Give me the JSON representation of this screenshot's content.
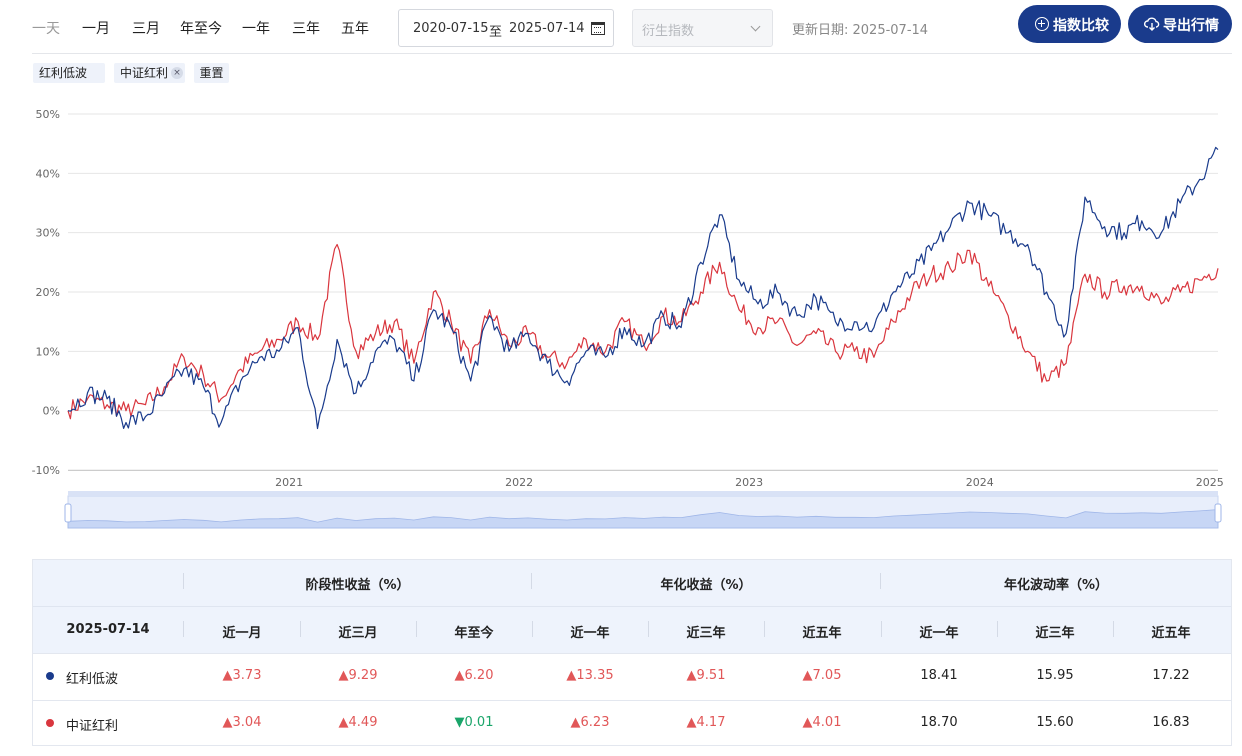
{
  "toolbar": {
    "periods": [
      "一天",
      "一月",
      "三月",
      "年至今",
      "一年",
      "三年",
      "五年"
    ],
    "date_start": "2020-07-15",
    "date_sep": "至",
    "date_end": "2025-07-14",
    "derivative_placeholder": "衍生指数",
    "update_label": "更新日期: 2025-07-14",
    "compare_label": "指数比较",
    "export_label": "导出行情"
  },
  "chips": {
    "index1": "红利低波",
    "index2": "中证红利",
    "reset": "重置",
    "remove": "×"
  },
  "chart_data": {
    "type": "line",
    "x_ticks": [
      "2021",
      "2022",
      "2023",
      "2024",
      "2025"
    ],
    "y_ticks": [
      "50%",
      "40%",
      "30%",
      "20%",
      "10%",
      "0%",
      "-10%"
    ],
    "ylim": [
      -10,
      50
    ],
    "x_range": [
      "2020-07-15",
      "2025-07-14"
    ],
    "grid": true,
    "series": [
      {
        "name": "红利低波",
        "color": "#1a3b8c",
        "x": [
          "2020-07-15",
          "2020-08-15",
          "2020-09-15",
          "2020-10-15",
          "2020-11-15",
          "2020-12-15",
          "2021-01-15",
          "2021-02-15",
          "2021-03-15",
          "2021-04-15",
          "2021-05-15",
          "2021-06-15",
          "2021-07-15",
          "2021-08-15",
          "2021-09-15",
          "2021-10-15",
          "2021-11-15",
          "2021-12-15",
          "2022-01-15",
          "2022-02-15",
          "2022-03-15",
          "2022-04-15",
          "2022-05-15",
          "2022-06-15",
          "2022-07-15",
          "2022-08-15",
          "2022-09-15",
          "2022-10-15",
          "2022-11-15",
          "2022-12-15",
          "2023-01-15",
          "2023-02-15",
          "2023-03-15",
          "2023-04-15",
          "2023-05-15",
          "2023-06-15",
          "2023-07-15",
          "2023-08-15",
          "2023-09-15",
          "2023-10-15",
          "2023-11-15",
          "2023-12-15",
          "2024-01-15",
          "2024-02-15",
          "2024-03-15",
          "2024-04-15",
          "2024-05-15",
          "2024-06-15",
          "2024-07-15",
          "2024-08-15",
          "2024-09-15",
          "2024-10-15",
          "2024-11-15",
          "2024-12-15",
          "2025-01-15",
          "2025-02-15",
          "2025-03-15",
          "2025-04-15",
          "2025-05-15",
          "2025-06-15",
          "2025-07-14"
        ],
        "values": [
          0,
          3,
          2,
          -2,
          -1,
          3,
          7,
          4,
          -2,
          5,
          9,
          10,
          14,
          -3,
          12,
          3,
          10,
          12,
          5,
          17,
          14,
          5,
          16,
          10,
          13,
          8,
          5,
          10,
          9,
          14,
          11,
          16,
          14,
          25,
          33,
          22,
          18,
          20,
          16,
          19,
          15,
          15,
          14,
          20,
          23,
          27,
          31,
          35,
          33,
          30,
          28,
          20,
          13,
          36,
          31,
          30,
          32,
          30,
          35,
          39,
          44
        ]
      },
      {
        "name": "中证红利",
        "color": "#d9363e",
        "x": [
          "2020-07-15",
          "2020-08-15",
          "2020-09-15",
          "2020-10-15",
          "2020-11-15",
          "2020-12-15",
          "2021-01-15",
          "2021-02-15",
          "2021-03-15",
          "2021-04-15",
          "2021-05-15",
          "2021-06-15",
          "2021-07-15",
          "2021-08-15",
          "2021-09-15",
          "2021-10-15",
          "2021-11-15",
          "2021-12-15",
          "2022-01-15",
          "2022-02-15",
          "2022-03-15",
          "2022-04-15",
          "2022-05-15",
          "2022-06-15",
          "2022-07-15",
          "2022-08-15",
          "2022-09-15",
          "2022-10-15",
          "2022-11-15",
          "2022-12-15",
          "2023-01-15",
          "2023-02-15",
          "2023-03-15",
          "2023-04-15",
          "2023-05-15",
          "2023-06-15",
          "2023-07-15",
          "2023-08-15",
          "2023-09-15",
          "2023-10-15",
          "2023-11-15",
          "2023-12-15",
          "2024-01-15",
          "2024-02-15",
          "2024-03-15",
          "2024-04-15",
          "2024-05-15",
          "2024-06-15",
          "2024-07-15",
          "2024-08-15",
          "2024-09-15",
          "2024-10-15",
          "2024-11-15",
          "2024-12-15",
          "2025-01-15",
          "2025-02-15",
          "2025-03-15",
          "2025-04-15",
          "2025-05-15",
          "2025-06-15",
          "2025-07-14"
        ],
        "values": [
          0,
          2,
          1,
          0,
          1,
          4,
          9,
          6,
          2,
          7,
          10,
          12,
          15,
          12,
          28,
          10,
          13,
          15,
          8,
          20,
          15,
          8,
          17,
          11,
          13,
          9,
          8,
          12,
          10,
          15,
          11,
          16,
          15,
          20,
          25,
          17,
          14,
          15,
          11,
          13,
          10,
          10,
          9,
          15,
          20,
          23,
          24,
          27,
          21,
          16,
          10,
          5,
          8,
          23,
          20,
          21,
          21,
          18,
          20,
          22,
          24
        ]
      }
    ]
  },
  "table": {
    "groups": [
      "阶段性收益（%）",
      "年化收益（%）",
      "年化波动率（%）"
    ],
    "date": "2025-07-14",
    "columns": [
      "近一月",
      "近三月",
      "年至今",
      "近一年",
      "近三年",
      "近五年",
      "近一年",
      "近三年",
      "近五年"
    ],
    "rows": [
      {
        "name": "红利低波",
        "dot_color": "#1a3b8c",
        "cells": [
          {
            "text": "▲3.73",
            "dir": "up"
          },
          {
            "text": "▲9.29",
            "dir": "up"
          },
          {
            "text": "▲6.20",
            "dir": "up"
          },
          {
            "text": "▲13.35",
            "dir": "up"
          },
          {
            "text": "▲9.51",
            "dir": "up"
          },
          {
            "text": "▲7.05",
            "dir": "up"
          },
          {
            "text": "18.41",
            "dir": "neutral"
          },
          {
            "text": "15.95",
            "dir": "neutral"
          },
          {
            "text": "17.22",
            "dir": "neutral"
          }
        ]
      },
      {
        "name": "中证红利",
        "dot_color": "#d9363e",
        "cells": [
          {
            "text": "▲3.04",
            "dir": "up"
          },
          {
            "text": "▲4.49",
            "dir": "up"
          },
          {
            "text": "▼0.01",
            "dir": "down"
          },
          {
            "text": "▲6.23",
            "dir": "up"
          },
          {
            "text": "▲4.17",
            "dir": "up"
          },
          {
            "text": "▲4.01",
            "dir": "up"
          },
          {
            "text": "18.70",
            "dir": "neutral"
          },
          {
            "text": "15.60",
            "dir": "neutral"
          },
          {
            "text": "16.83",
            "dir": "neutral"
          }
        ]
      }
    ]
  }
}
